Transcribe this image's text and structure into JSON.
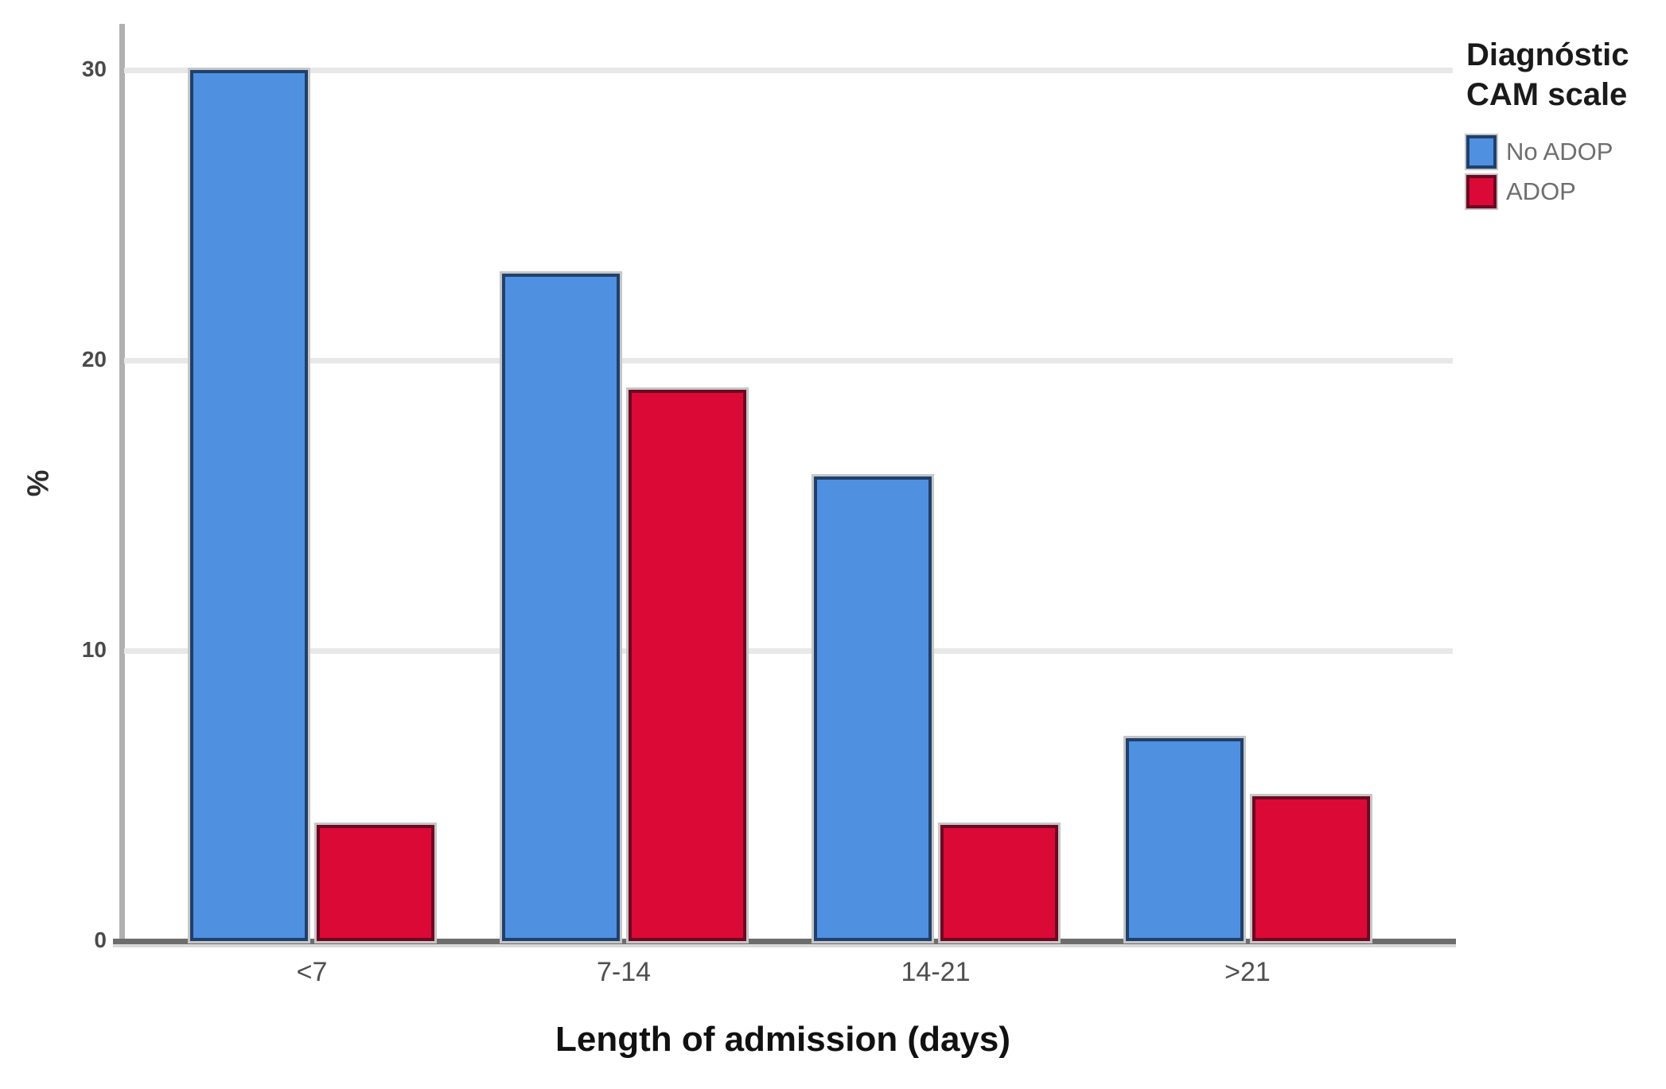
{
  "chart_data": {
    "type": "bar",
    "categories": [
      "<7",
      "7-14",
      "14-21",
      ">21"
    ],
    "series": [
      {
        "name": "No ADOP",
        "values": [
          30,
          23,
          16,
          7
        ],
        "color": "#4F90E0",
        "border_color": "#20406B"
      },
      {
        "name": "ADOP",
        "values": [
          4,
          19,
          4,
          5
        ],
        "color": "#DB0936",
        "border_color": "#6E0722"
      }
    ],
    "title": "",
    "xlabel": "Length of admission (days)",
    "ylabel": "%",
    "yticks": [
      0,
      10,
      20,
      30
    ],
    "ylim": [
      0,
      31.6
    ],
    "grid": true,
    "legend": {
      "title": "Diagnóstic CAM scale",
      "position": "top-right"
    }
  }
}
